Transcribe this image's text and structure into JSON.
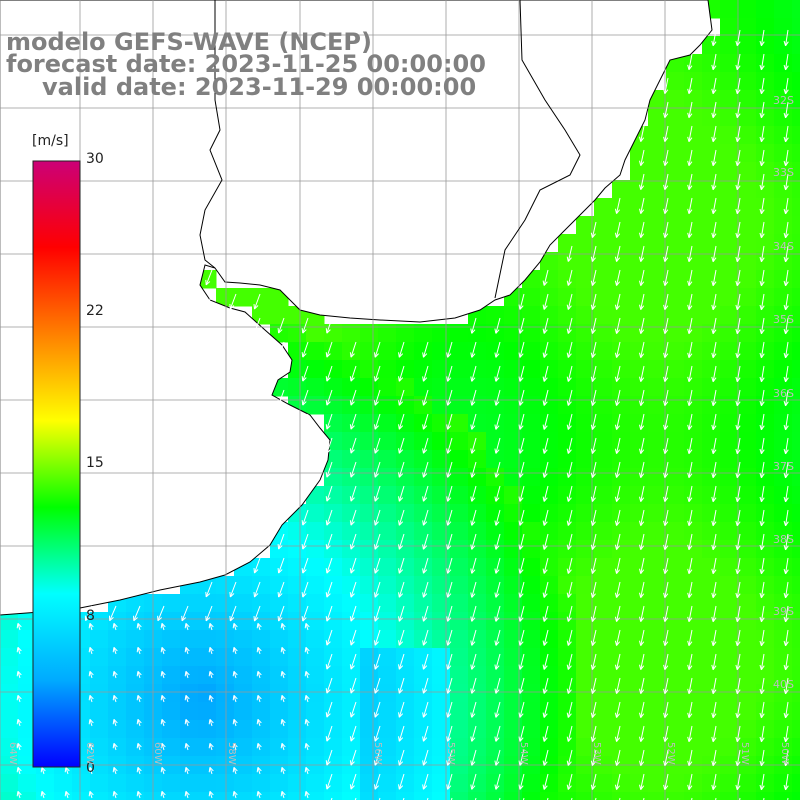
{
  "title": {
    "line1": "modelo GEFS-WAVE (NCEP)",
    "line2": "forecast date: 2023-11-25 00:00:00",
    "line3": "valid date: 2023-11-29 00:00:00"
  },
  "colorbar": {
    "unit": "[m/s]",
    "min": 0,
    "max": 30,
    "ticks": [
      "30",
      "22",
      "15",
      "8",
      "0"
    ],
    "tick_values": [
      30,
      22,
      15,
      8,
      0
    ],
    "stops": [
      "#0000ff",
      "#00aaff",
      "#00ffff",
      "#00ff00",
      "#ffff00",
      "#ff8000",
      "#ff0000",
      "#cc0077"
    ]
  },
  "map": {
    "variable": "wind speed and direction",
    "land_color": "#ffffff",
    "coast_color": "#000000",
    "grid_color": "#999999",
    "arrow_color": "#ffffff",
    "lat_labels": [
      "32S",
      "33S",
      "34S",
      "35S",
      "36S",
      "37S",
      "38S",
      "39S",
      "40S"
    ],
    "lon_labels": [
      "64W",
      "62W",
      "60W",
      "58W",
      "56W",
      "55W",
      "54W",
      "53W",
      "52W",
      "51W",
      "50W"
    ]
  }
}
